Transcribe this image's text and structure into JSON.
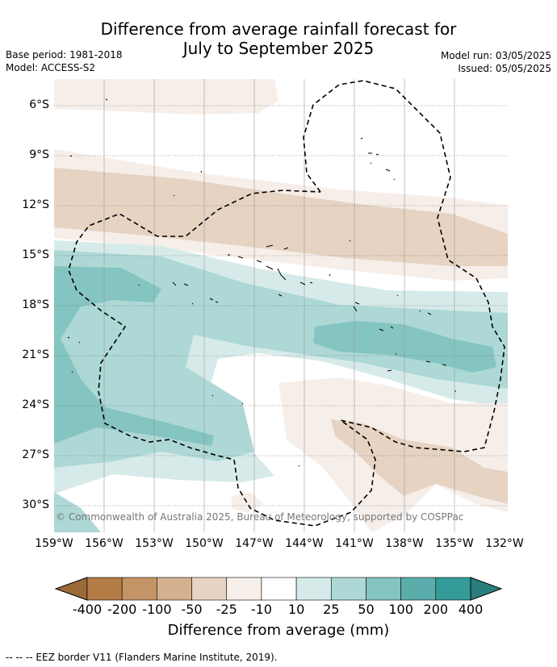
{
  "title": {
    "line1": "Difference from average rainfall forecast for",
    "line2": "July to September 2025"
  },
  "meta": {
    "base_period": "Base period: 1981-2018",
    "model": "Model: ACCESS-S2",
    "model_run": "Model run: 03/05/2025",
    "issued": "Issued: 05/05/2025"
  },
  "map": {
    "lat_labels": [
      "6°S",
      "9°S",
      "12°S",
      "15°S",
      "18°S",
      "21°S",
      "24°S",
      "27°S",
      "30°S"
    ],
    "lon_labels": [
      "159°W",
      "156°W",
      "153°W",
      "150°W",
      "147°W",
      "144°W",
      "141°W",
      "138°W",
      "135°W",
      "132°W"
    ],
    "copyright": "© Commonwealth of Australia 2025, Bureau of Meteorology, supported by COSPPac"
  },
  "colorbar": {
    "title": "Difference from average (mm)",
    "tick_labels": [
      "-400",
      "-200",
      "-100",
      "-50",
      "-25",
      "-10",
      "10",
      "25",
      "50",
      "100",
      "200",
      "400"
    ],
    "colors": [
      "#9a6a39",
      "#b37b45",
      "#c49467",
      "#d5b18f",
      "#e6d3c2",
      "#f6eee9",
      "#ffffff",
      "#d6ebe9",
      "#add8d6",
      "#84c4c1",
      "#5badab",
      "#349b99",
      "#2a7f7d"
    ]
  },
  "footer": {
    "legend_note": "--  --  -- EEZ border V11 (Flanders Marine Institute, 2019)."
  }
}
